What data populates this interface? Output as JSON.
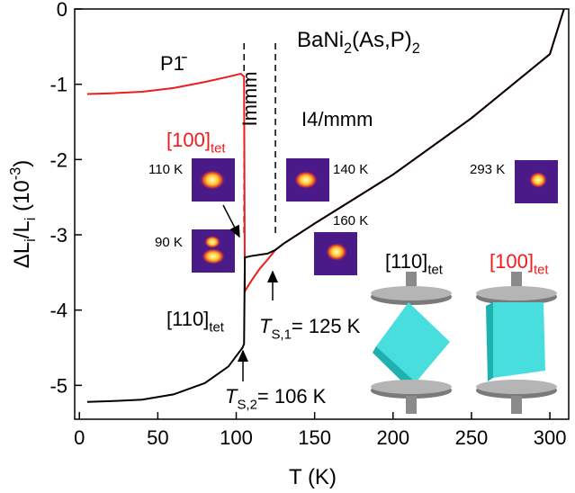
{
  "chart_data": {
    "type": "line",
    "xlabel": "T (K)",
    "ylabel": [
      {
        "text": "ΔL"
      },
      {
        "text": "i",
        "sub": true
      },
      {
        "text": "/L"
      },
      {
        "text": "i",
        "sub": true
      },
      {
        "text": " (10"
      },
      {
        "text": "-3",
        "sup": true
      },
      {
        "text": ")"
      }
    ],
    "xlim": [
      -3,
      312
    ],
    "ylim": [
      -5.45,
      0
    ],
    "xticks": [
      0,
      50,
      100,
      150,
      200,
      250,
      300
    ],
    "yticks": [
      0,
      -1,
      -2,
      -3,
      -4,
      -5
    ],
    "transitions": [
      105,
      125
    ],
    "series": [
      {
        "color": "#ee1c1c",
        "x": [
          5,
          20,
          40,
          60,
          80,
          95,
          103,
          105,
          105.5,
          110,
          115,
          120,
          125,
          130,
          150,
          200,
          250,
          300,
          309
        ],
        "values": [
          -1.13,
          -1.12,
          -1.1,
          -1.05,
          -0.97,
          -0.9,
          -0.86,
          -0.9,
          -3.75,
          -3.6,
          -3.45,
          -3.33,
          -3.2,
          -3.12,
          -2.85,
          -2.2,
          -1.45,
          -0.6,
          0
        ]
      },
      {
        "color": "#000000",
        "x": [
          5,
          20,
          40,
          60,
          80,
          95,
          104,
          105,
          105.5,
          110,
          120,
          125,
          130,
          150,
          200,
          250,
          300,
          309
        ],
        "values": [
          -5.22,
          -5.21,
          -5.19,
          -5.12,
          -4.97,
          -4.75,
          -4.5,
          -4.45,
          -3.3,
          -3.28,
          -3.25,
          -3.2,
          -3.12,
          -2.85,
          -2.2,
          -1.45,
          -0.6,
          0
        ]
      }
    ],
    "annotations": [
      {
        "color": "#000000",
        "parts": [
          {
            "text": "BaNi"
          },
          {
            "text": "2",
            "sub": true
          },
          {
            "text": "(As,P)"
          },
          {
            "text": "2",
            "sub": true
          }
        ]
      },
      {
        "color": "#000000",
        "parts": [
          {
            "text": "P1̄"
          }
        ]
      },
      {
        "color": "#000000",
        "parts": [
          {
            "text": "Immm"
          }
        ]
      },
      {
        "color": "#000000",
        "parts": [
          {
            "text": "I4/mmm"
          }
        ]
      },
      {
        "color": "#ee1c1c",
        "parts": [
          {
            "text": "[100]"
          },
          {
            "text": "tet",
            "sub": true
          }
        ]
      },
      {
        "color": "#000000",
        "parts": [
          {
            "text": "[110]"
          },
          {
            "text": "tet",
            "sub": true
          }
        ]
      },
      {
        "color": "#000000",
        "parts": [
          {
            "text": "T",
            "italic": true
          },
          {
            "text": "S,1",
            "sub": true
          },
          {
            "text": "= 125 K"
          }
        ]
      },
      {
        "color": "#000000",
        "parts": [
          {
            "text": "T",
            "italic": true
          },
          {
            "text": "S,2",
            "sub": true
          },
          {
            "text": "= 106 K"
          }
        ]
      },
      {
        "color": "#000000",
        "parts": [
          {
            "text": "[110]"
          },
          {
            "text": "tet",
            "sub": true
          }
        ]
      },
      {
        "color": "#ee1c1c",
        "parts": [
          {
            "text": "[100]"
          },
          {
            "text": "tet",
            "sub": true
          }
        ]
      },
      {
        "color": "#000000",
        "parts": [
          {
            "text": "110 K"
          }
        ]
      },
      {
        "color": "#000000",
        "parts": [
          {
            "text": "140 K"
          }
        ]
      },
      {
        "color": "#000000",
        "parts": [
          {
            "text": "293 K"
          }
        ]
      },
      {
        "color": "#000000",
        "parts": [
          {
            "text": "90 K"
          }
        ]
      },
      {
        "color": "#000000",
        "parts": [
          {
            "text": "160 K"
          }
        ]
      }
    ]
  }
}
